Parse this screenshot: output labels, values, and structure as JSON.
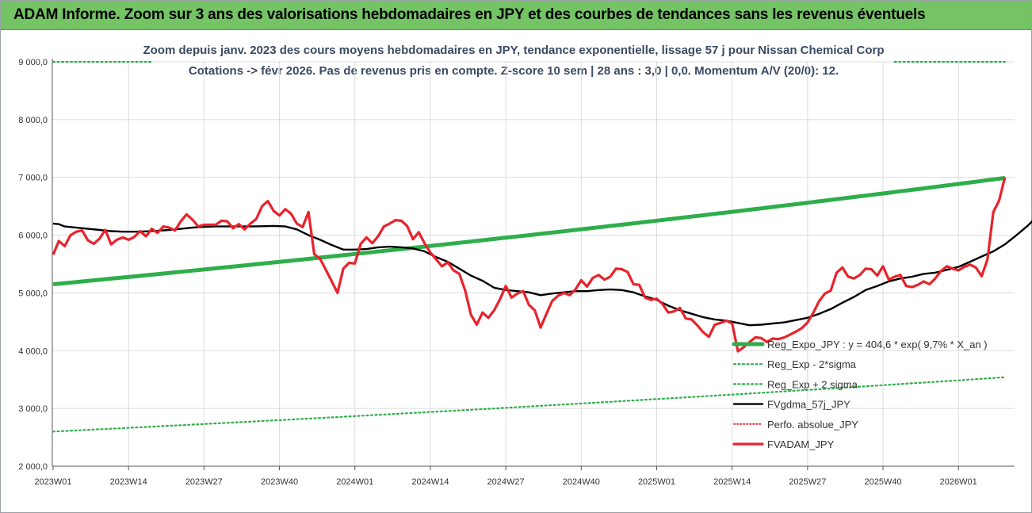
{
  "header": {
    "title": "ADAM Informe. Zoom sur 3 ans des valorisations hebdomadaires en JPY et des courbes de tendances sans les revenus éventuels"
  },
  "chart_data": {
    "type": "line",
    "title_lines": [
      "Zoom depuis janv. 2023 des cours moyens hebdomadaires en JPY, tendance exponentielle, lissage 57 j pour Nissan Chemical Corp",
      "Cotations -> févr 2026. Pas de revenus pris en compte. Z-score 10 sem | 28 ans : 3,0 | 0,0. Momentum A/V (20/0): 12."
    ],
    "x_tick_labels": [
      "2023W01",
      "2023W14",
      "2023W27",
      "2023W40",
      "2024W01",
      "2024W14",
      "2024W27",
      "2024W40",
      "2025W01",
      "2025W14",
      "2025W27",
      "2025W40",
      "2026W01"
    ],
    "x_tick_index": [
      0,
      13,
      26,
      39,
      52,
      65,
      78,
      91,
      104,
      117,
      130,
      143,
      156
    ],
    "y_ticks": [
      2000,
      3000,
      4000,
      5000,
      6000,
      7000,
      8000,
      9000
    ],
    "y_tick_labels": [
      "2 000,0",
      "3 000,0",
      "4 000,0",
      "5 000,0",
      "6 000,0",
      "7 000,0",
      "8 000,0",
      "9 000,0"
    ],
    "ylim": [
      2000,
      9000
    ],
    "grid": true,
    "legend_position": "right",
    "series": [
      {
        "name": "Reg_Expo_JPY : y = 404,6 * exp( 9,7% *  X_an )",
        "color": "#2eae4a",
        "style": "solid-thick",
        "start_week": 0,
        "end_week": 164,
        "start_value": 5150,
        "end_value": 6990
      },
      {
        "name": "Reg_Exp - 2*sigma",
        "color": "#2eae4a",
        "style": "dotted",
        "start_week": 0,
        "end_week": 164,
        "start_value": 2600,
        "end_value": 3540
      },
      {
        "name": "Reg_Exp + 2 sigma",
        "color": "#2eae4a",
        "style": "dotted",
        "segments": [
          [
            0,
            17,
            9000
          ],
          [
            145,
            164,
            9000
          ]
        ]
      },
      {
        "name": "FVgdma_57j_JPY",
        "color": "#000000",
        "style": "solid",
        "points": [
          [
            0,
            6200
          ],
          [
            1,
            6190
          ],
          [
            2,
            6150
          ],
          [
            4,
            6130
          ],
          [
            6,
            6110
          ],
          [
            8,
            6090
          ],
          [
            10,
            6070
          ],
          [
            12,
            6060
          ],
          [
            14,
            6060
          ],
          [
            16,
            6065
          ],
          [
            18,
            6075
          ],
          [
            20,
            6090
          ],
          [
            22,
            6110
          ],
          [
            24,
            6130
          ],
          [
            26,
            6145
          ],
          [
            28,
            6150
          ],
          [
            30,
            6150
          ],
          [
            32,
            6150
          ],
          [
            34,
            6150
          ],
          [
            36,
            6155
          ],
          [
            38,
            6160
          ],
          [
            40,
            6150
          ],
          [
            42,
            6100
          ],
          [
            44,
            6000
          ],
          [
            46,
            5920
          ],
          [
            48,
            5830
          ],
          [
            50,
            5750
          ],
          [
            52,
            5750
          ],
          [
            54,
            5760
          ],
          [
            56,
            5790
          ],
          [
            58,
            5800
          ],
          [
            60,
            5790
          ],
          [
            62,
            5770
          ],
          [
            64,
            5720
          ],
          [
            66,
            5620
          ],
          [
            68,
            5540
          ],
          [
            70,
            5420
          ],
          [
            72,
            5300
          ],
          [
            74,
            5210
          ],
          [
            76,
            5090
          ],
          [
            78,
            5050
          ],
          [
            80,
            5030
          ],
          [
            82,
            5010
          ],
          [
            84,
            4960
          ],
          [
            86,
            4990
          ],
          [
            88,
            5010
          ],
          [
            90,
            5030
          ],
          [
            92,
            5030
          ],
          [
            94,
            5050
          ],
          [
            96,
            5060
          ],
          [
            98,
            5050
          ],
          [
            100,
            5010
          ],
          [
            102,
            4940
          ],
          [
            104,
            4880
          ],
          [
            106,
            4780
          ],
          [
            108,
            4700
          ],
          [
            110,
            4640
          ],
          [
            112,
            4580
          ],
          [
            114,
            4540
          ],
          [
            116,
            4520
          ],
          [
            118,
            4480
          ],
          [
            120,
            4440
          ],
          [
            122,
            4450
          ],
          [
            124,
            4470
          ],
          [
            126,
            4490
          ],
          [
            128,
            4530
          ],
          [
            130,
            4570
          ],
          [
            132,
            4640
          ],
          [
            134,
            4720
          ],
          [
            136,
            4830
          ],
          [
            138,
            4930
          ],
          [
            140,
            5050
          ],
          [
            142,
            5120
          ],
          [
            144,
            5200
          ],
          [
            146,
            5250
          ],
          [
            148,
            5280
          ],
          [
            150,
            5330
          ],
          [
            152,
            5350
          ],
          [
            154,
            5400
          ],
          [
            156,
            5450
          ],
          [
            158,
            5540
          ],
          [
            160,
            5630
          ],
          [
            162,
            5720
          ],
          [
            164,
            5840
          ],
          [
            166,
            6000
          ],
          [
            168,
            6170
          ],
          [
            170,
            6370
          ]
        ]
      },
      {
        "name": "Perfo. absolue_JPY",
        "color": "#e8232b",
        "style": "dotted-legend-only"
      },
      {
        "name": "FVADAM_JPY",
        "color": "#e8232b",
        "style": "solid-thick",
        "points": [
          [
            0,
            5660
          ],
          [
            1,
            5900
          ],
          [
            2,
            5810
          ],
          [
            3,
            6000
          ],
          [
            4,
            6060
          ],
          [
            5,
            6080
          ],
          [
            6,
            5910
          ],
          [
            7,
            5850
          ],
          [
            8,
            5940
          ],
          [
            9,
            6090
          ],
          [
            10,
            5840
          ],
          [
            11,
            5920
          ],
          [
            12,
            5960
          ],
          [
            13,
            5920
          ],
          [
            14,
            5970
          ],
          [
            15,
            6070
          ],
          [
            16,
            5980
          ],
          [
            17,
            6110
          ],
          [
            18,
            6040
          ],
          [
            19,
            6150
          ],
          [
            20,
            6130
          ],
          [
            21,
            6080
          ],
          [
            22,
            6240
          ],
          [
            23,
            6360
          ],
          [
            24,
            6270
          ],
          [
            25,
            6150
          ],
          [
            26,
            6180
          ],
          [
            27,
            6180
          ],
          [
            28,
            6180
          ],
          [
            29,
            6250
          ],
          [
            30,
            6240
          ],
          [
            31,
            6120
          ],
          [
            32,
            6190
          ],
          [
            33,
            6100
          ],
          [
            34,
            6200
          ],
          [
            35,
            6280
          ],
          [
            36,
            6500
          ],
          [
            37,
            6590
          ],
          [
            38,
            6420
          ],
          [
            39,
            6340
          ],
          [
            40,
            6450
          ],
          [
            41,
            6370
          ],
          [
            42,
            6200
          ],
          [
            43,
            6140
          ],
          [
            44,
            6400
          ],
          [
            45,
            5670
          ],
          [
            46,
            5590
          ],
          [
            47,
            5400
          ],
          [
            48,
            5200
          ],
          [
            49,
            5000
          ],
          [
            50,
            5420
          ],
          [
            51,
            5520
          ],
          [
            52,
            5510
          ],
          [
            53,
            5850
          ],
          [
            54,
            5960
          ],
          [
            55,
            5860
          ],
          [
            56,
            5980
          ],
          [
            57,
            6150
          ],
          [
            58,
            6200
          ],
          [
            59,
            6260
          ],
          [
            60,
            6250
          ],
          [
            61,
            6160
          ],
          [
            62,
            5930
          ],
          [
            63,
            6050
          ],
          [
            64,
            5860
          ],
          [
            65,
            5700
          ],
          [
            66,
            5580
          ],
          [
            67,
            5460
          ],
          [
            68,
            5530
          ],
          [
            69,
            5390
          ],
          [
            70,
            5330
          ],
          [
            71,
            5040
          ],
          [
            72,
            4620
          ],
          [
            73,
            4450
          ],
          [
            74,
            4660
          ],
          [
            75,
            4570
          ],
          [
            76,
            4700
          ],
          [
            77,
            4890
          ],
          [
            78,
            5120
          ],
          [
            79,
            4920
          ],
          [
            80,
            4990
          ],
          [
            81,
            5030
          ],
          [
            82,
            4790
          ],
          [
            83,
            4700
          ],
          [
            84,
            4400
          ],
          [
            85,
            4640
          ],
          [
            86,
            4860
          ],
          [
            87,
            4950
          ],
          [
            88,
            5000
          ],
          [
            89,
            4960
          ],
          [
            90,
            5060
          ],
          [
            91,
            5220
          ],
          [
            92,
            5110
          ],
          [
            93,
            5260
          ],
          [
            94,
            5310
          ],
          [
            95,
            5230
          ],
          [
            96,
            5280
          ],
          [
            97,
            5420
          ],
          [
            98,
            5410
          ],
          [
            99,
            5360
          ],
          [
            100,
            5150
          ],
          [
            101,
            5140
          ],
          [
            102,
            4920
          ],
          [
            103,
            4880
          ],
          [
            104,
            4900
          ],
          [
            105,
            4810
          ],
          [
            106,
            4660
          ],
          [
            107,
            4680
          ],
          [
            108,
            4740
          ],
          [
            109,
            4560
          ],
          [
            110,
            4540
          ],
          [
            111,
            4440
          ],
          [
            112,
            4320
          ],
          [
            113,
            4240
          ],
          [
            114,
            4450
          ],
          [
            115,
            4480
          ],
          [
            116,
            4520
          ],
          [
            117,
            4470
          ],
          [
            118,
            3990
          ],
          [
            119,
            4060
          ],
          [
            120,
            4150
          ],
          [
            121,
            4230
          ],
          [
            122,
            4220
          ],
          [
            123,
            4150
          ],
          [
            124,
            4210
          ],
          [
            125,
            4200
          ],
          [
            126,
            4230
          ],
          [
            127,
            4280
          ],
          [
            128,
            4330
          ],
          [
            129,
            4390
          ],
          [
            130,
            4490
          ],
          [
            131,
            4660
          ],
          [
            132,
            4860
          ],
          [
            133,
            4990
          ],
          [
            134,
            5040
          ],
          [
            135,
            5350
          ],
          [
            136,
            5440
          ],
          [
            137,
            5280
          ],
          [
            138,
            5250
          ],
          [
            139,
            5310
          ],
          [
            140,
            5420
          ],
          [
            141,
            5410
          ],
          [
            142,
            5300
          ],
          [
            143,
            5460
          ],
          [
            144,
            5230
          ],
          [
            145,
            5280
          ],
          [
            146,
            5310
          ],
          [
            147,
            5120
          ],
          [
            148,
            5100
          ],
          [
            149,
            5140
          ],
          [
            150,
            5200
          ],
          [
            151,
            5150
          ],
          [
            152,
            5250
          ],
          [
            153,
            5380
          ],
          [
            154,
            5460
          ],
          [
            155,
            5420
          ],
          [
            156,
            5390
          ],
          [
            157,
            5450
          ],
          [
            158,
            5490
          ],
          [
            159,
            5440
          ],
          [
            160,
            5290
          ],
          [
            161,
            5580
          ],
          [
            162,
            6400
          ],
          [
            163,
            6600
          ],
          [
            164,
            7000
          ]
        ]
      }
    ]
  }
}
